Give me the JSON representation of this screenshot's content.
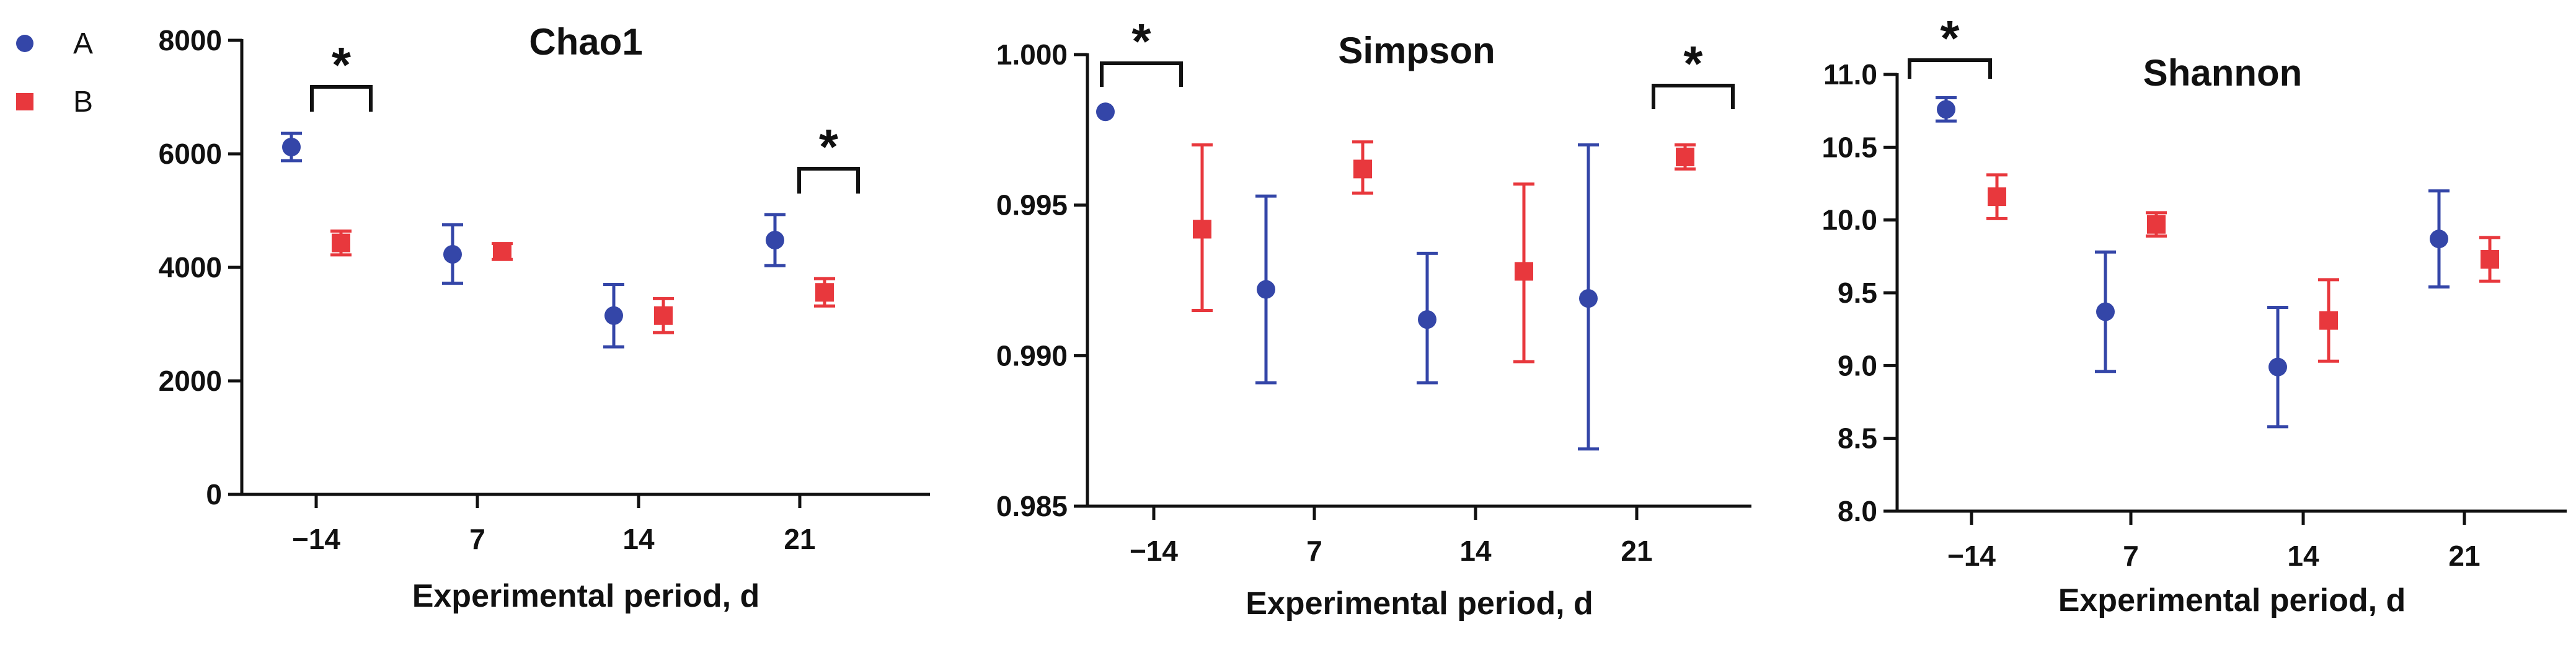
{
  "colors": {
    "A": "#3446a8",
    "B": "#e8383d",
    "axis": "#111111"
  },
  "legend": [
    {
      "label": "A",
      "marker": "circle",
      "color_key": "A"
    },
    {
      "label": "B",
      "marker": "square",
      "color_key": "B"
    }
  ],
  "chart_data": [
    {
      "type": "scatter",
      "title": "Chao1",
      "xlabel": "Experimental period, d",
      "ylabel": "",
      "categories": [
        "−14",
        "7",
        "14",
        "21"
      ],
      "ylim": [
        0,
        8000
      ],
      "yticks": [
        "0",
        "2000",
        "4000",
        "6000",
        "8000"
      ],
      "ytick_values": [
        0,
        2000,
        4000,
        6000,
        8000
      ],
      "series": [
        {
          "name": "A",
          "values": [
            6120,
            4230,
            3150,
            4480
          ],
          "err_low": [
            5880,
            3720,
            2600,
            4030
          ],
          "err_high": [
            6360,
            4750,
            3700,
            4930
          ]
        },
        {
          "name": "B",
          "values": [
            4430,
            4280,
            3150,
            3560
          ],
          "err_low": [
            4220,
            4140,
            2850,
            3320
          ],
          "err_high": [
            4640,
            4420,
            3450,
            3800
          ]
        }
      ],
      "significance": [
        {
          "category_index": 0,
          "label": "*",
          "y": 7150
        },
        {
          "category_index": 3,
          "label": "*",
          "y": 5750
        }
      ]
    },
    {
      "type": "scatter",
      "title": "Simpson",
      "xlabel": "Experimental period, d",
      "ylabel": "",
      "categories": [
        "−14",
        "7",
        "14",
        "21"
      ],
      "ylim": [
        0.985,
        1.0
      ],
      "yticks": [
        "0.985",
        "0.990",
        "0.995",
        "1.000"
      ],
      "ytick_values": [
        0.985,
        0.99,
        0.995,
        1.0
      ],
      "series": [
        {
          "name": "A",
          "values": [
            0.9981,
            0.9922,
            0.9912,
            0.9919
          ],
          "err_low": [
            0.9981,
            0.9891,
            0.9891,
            0.9869
          ],
          "err_high": [
            0.9981,
            0.9953,
            0.9934,
            0.997
          ]
        },
        {
          "name": "B",
          "values": [
            0.9942,
            0.9962,
            0.9928,
            0.9966
          ],
          "err_low": [
            0.9915,
            0.9954,
            0.9898,
            0.9962
          ],
          "err_high": [
            0.997,
            0.9971,
            0.9957,
            0.997
          ]
        }
      ],
      "significance": [
        {
          "category_index": 0,
          "label": "*",
          "y": 0.9998
        },
        {
          "category_index": 3,
          "label": "*",
          "y": 0.9994
        }
      ]
    },
    {
      "type": "scatter",
      "title": "Shannon",
      "xlabel": "Experimental period, d",
      "ylabel": "",
      "categories": [
        "−14",
        "7",
        "14",
        "21"
      ],
      "ylim": [
        8.0,
        11.0
      ],
      "yticks": [
        "8.0",
        "8.5",
        "9.0",
        "9.5",
        "10.0",
        "10.5",
        "11.0"
      ],
      "ytick_values": [
        8.0,
        8.5,
        9.0,
        9.5,
        10.0,
        10.5,
        11.0
      ],
      "series": [
        {
          "name": "A",
          "values": [
            10.76,
            9.37,
            8.99,
            9.87
          ],
          "err_low": [
            10.68,
            8.96,
            8.58,
            9.54
          ],
          "err_high": [
            10.84,
            9.78,
            9.4,
            10.2
          ]
        },
        {
          "name": "B",
          "values": [
            10.16,
            9.97,
            9.31,
            9.73
          ],
          "err_low": [
            10.01,
            9.89,
            9.03,
            9.58
          ],
          "err_high": [
            10.31,
            10.05,
            9.59,
            9.88
          ]
        }
      ],
      "significance": [
        {
          "category_index": 0,
          "label": "*",
          "y": 10.98
        }
      ]
    }
  ]
}
